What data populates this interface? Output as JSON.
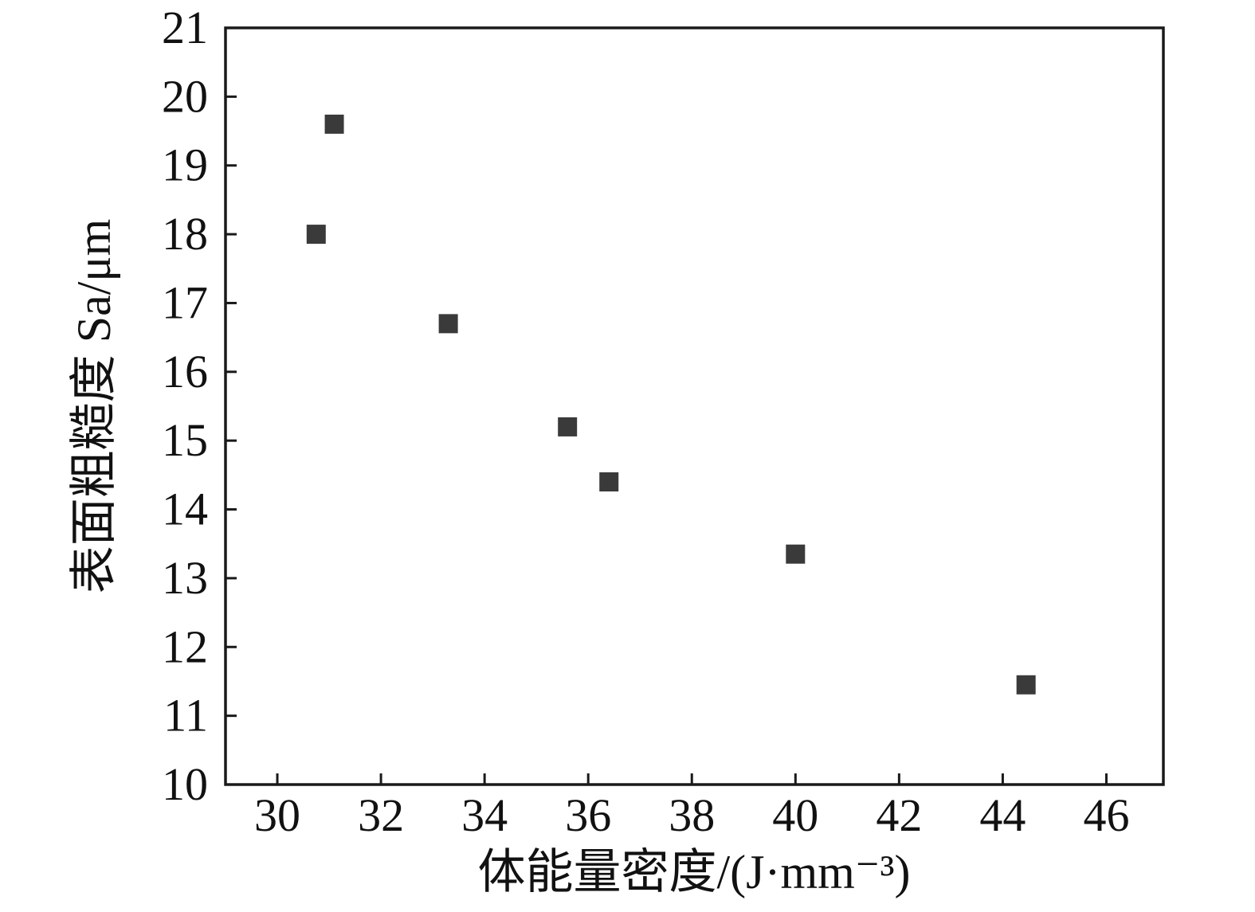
{
  "page": {
    "background": "#ffffff"
  },
  "chart_data": {
    "type": "scatter",
    "title": "",
    "xlabel": "体能量密度/(J·mm⁻³)",
    "ylabel": "表面粗糙度 Sa/μm",
    "xlim": [
      29.0,
      47.1
    ],
    "ylim": [
      10,
      21
    ],
    "xticks": [
      30,
      32,
      34,
      36,
      38,
      40,
      42,
      44,
      46
    ],
    "yticks": [
      10,
      11,
      12,
      13,
      14,
      15,
      16,
      17,
      18,
      19,
      20,
      21
    ],
    "grid": false,
    "legend": null,
    "axis_color": "#1a1a1a",
    "marker": {
      "shape": "square",
      "size": 24,
      "color": "#3a3a3a"
    },
    "points": [
      {
        "x": 30.75,
        "y": 18.0
      },
      {
        "x": 31.1,
        "y": 19.6
      },
      {
        "x": 33.3,
        "y": 16.7
      },
      {
        "x": 35.6,
        "y": 15.2
      },
      {
        "x": 36.4,
        "y": 14.4
      },
      {
        "x": 40.0,
        "y": 13.35
      },
      {
        "x": 44.45,
        "y": 11.45
      }
    ]
  }
}
